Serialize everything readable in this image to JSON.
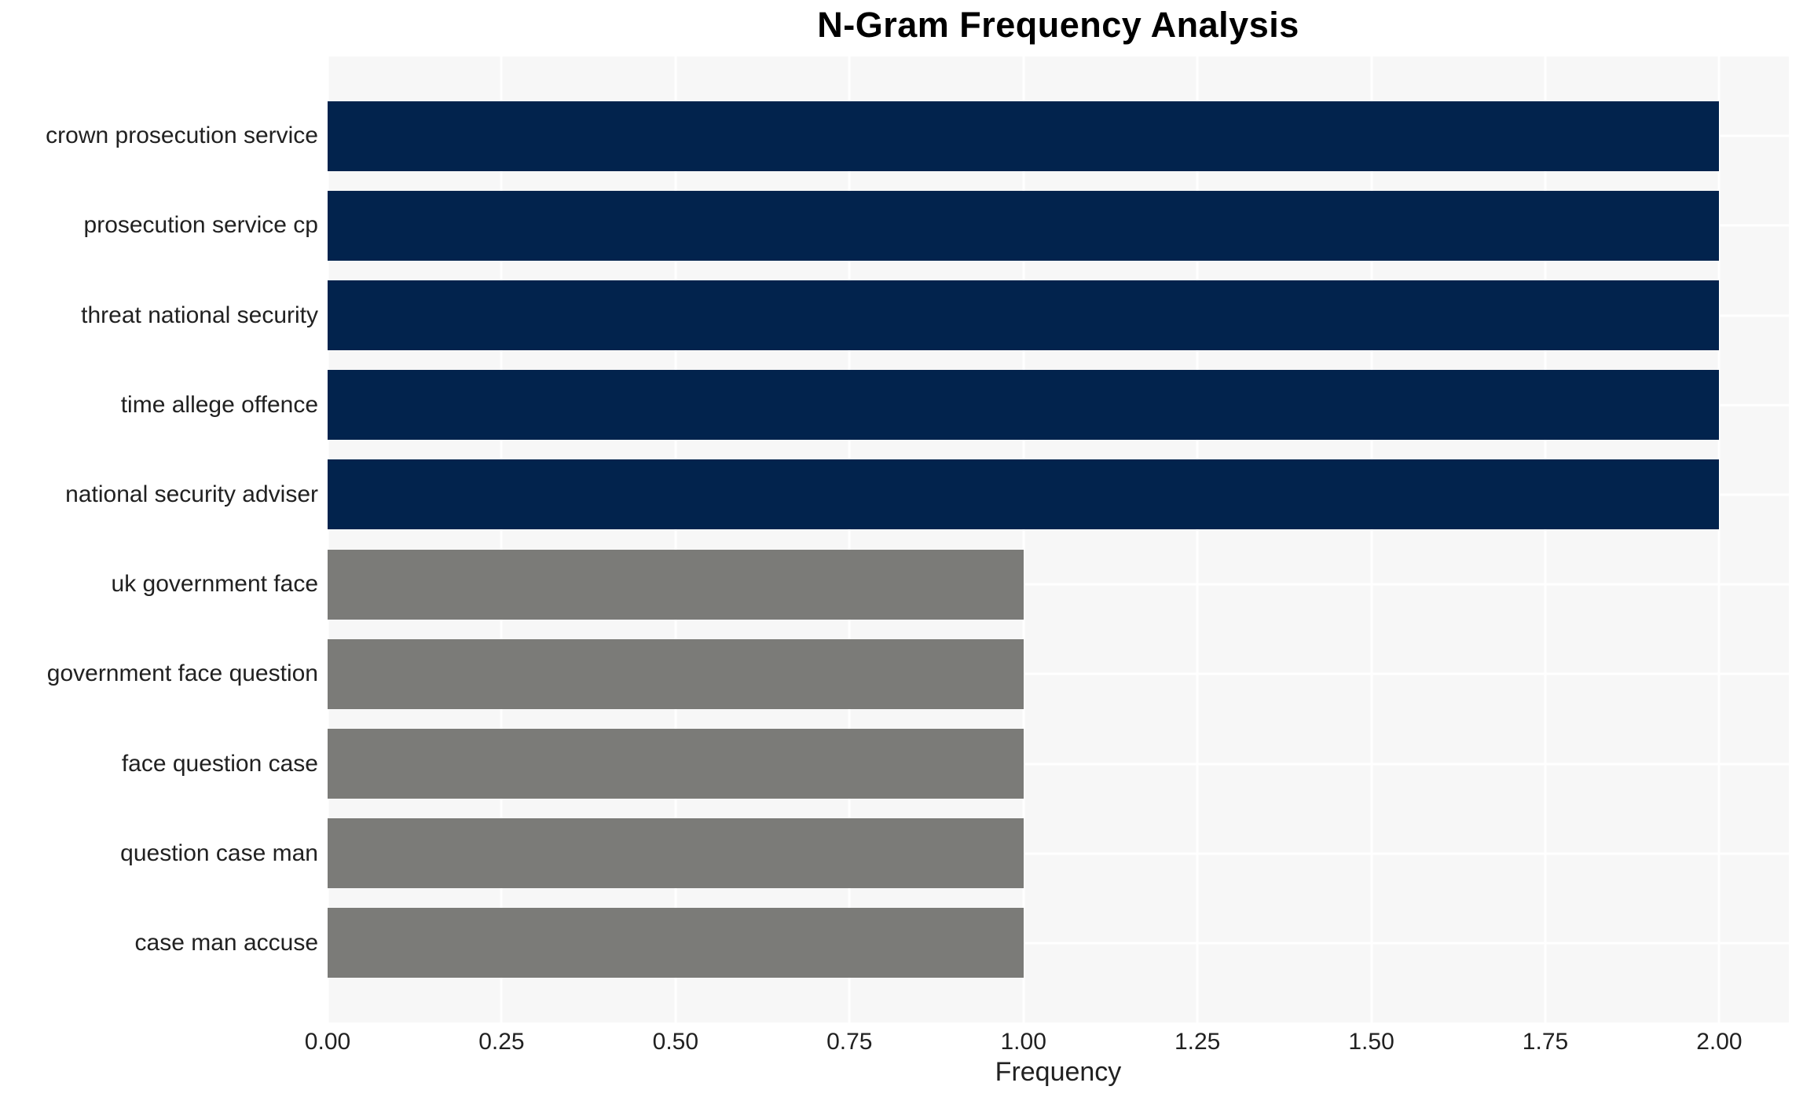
{
  "page": {
    "background_color": "#ffffff"
  },
  "chart_data": {
    "type": "bar",
    "orientation": "horizontal",
    "title": "N-Gram Frequency Analysis",
    "xlabel": "Frequency",
    "ylabel": "",
    "categories": [
      "crown prosecution service",
      "prosecution service cp",
      "threat national security",
      "time allege offence",
      "national security adviser",
      "uk government face",
      "government face question",
      "face question case",
      "question case man",
      "case man accuse"
    ],
    "values": [
      2.0,
      2.0,
      2.0,
      2.0,
      2.0,
      1.0,
      1.0,
      1.0,
      1.0,
      1.0
    ],
    "bar_colors": [
      "#02234d",
      "#02234d",
      "#02234d",
      "#02234d",
      "#02234d",
      "#7b7b78",
      "#7b7b78",
      "#7b7b78",
      "#7b7b78",
      "#7b7b78"
    ],
    "xlim": [
      0,
      2.1
    ],
    "xticks": {
      "values": [
        0.0,
        0.25,
        0.5,
        0.75,
        1.0,
        1.25,
        1.5,
        1.75,
        2.0
      ],
      "labels": [
        "0.00",
        "0.25",
        "0.50",
        "0.75",
        "1.00",
        "1.25",
        "1.50",
        "1.75",
        "2.00"
      ]
    },
    "grid": "on",
    "legend": "none",
    "colors": {
      "high_frequency_bar": "#02234d",
      "low_frequency_bar": "#7b7b78",
      "plot_background": "#f7f7f7",
      "gridline": "#ffffff",
      "tick_text": "#212121",
      "title_text": "#000000"
    }
  }
}
